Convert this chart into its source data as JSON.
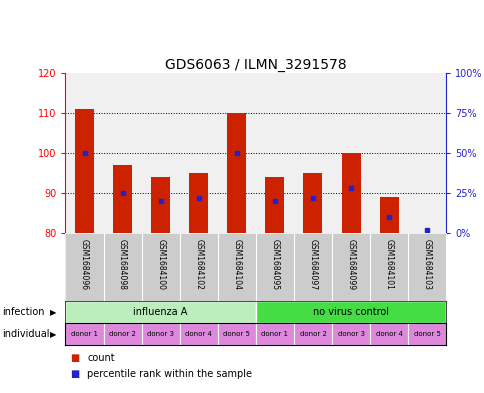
{
  "title": "GDS6063 / ILMN_3291578",
  "samples": [
    "GSM1684096",
    "GSM1684098",
    "GSM1684100",
    "GSM1684102",
    "GSM1684104",
    "GSM1684095",
    "GSM1684097",
    "GSM1684099",
    "GSM1684101",
    "GSM1684103"
  ],
  "count_values": [
    111,
    97,
    94,
    95,
    110,
    94,
    95,
    100,
    89,
    80
  ],
  "percentile_values": [
    50,
    25,
    20,
    22,
    50,
    20,
    22,
    28,
    10,
    2
  ],
  "ylim_left": [
    80,
    120
  ],
  "ylim_right": [
    0,
    100
  ],
  "yticks_left": [
    80,
    90,
    100,
    110,
    120
  ],
  "yticks_right": [
    0,
    25,
    50,
    75,
    100
  ],
  "ytick_labels_right": [
    "0%",
    "25%",
    "50%",
    "75%",
    "100%"
  ],
  "bar_color": "#cc2200",
  "blue_color": "#2222cc",
  "bar_width": 0.5,
  "infection_groups": [
    {
      "label": "influenza A",
      "start": 0,
      "end": 5,
      "color": "#bbeebb"
    },
    {
      "label": "no virus control",
      "start": 5,
      "end": 10,
      "color": "#44dd44"
    }
  ],
  "individual_labels": [
    "donor 1",
    "donor 2",
    "donor 3",
    "donor 4",
    "donor 5",
    "donor 1",
    "donor 2",
    "donor 3",
    "donor 4",
    "donor 5"
  ],
  "individual_color": "#dd88dd",
  "sample_bg_color": "#cccccc",
  "infection_label": "infection",
  "individual_label": "individual",
  "legend_count_label": "count",
  "legend_percentile_label": "percentile rank within the sample",
  "title_fontsize": 10,
  "tick_fontsize": 7,
  "ax_bg_color": "#f0f0f0"
}
